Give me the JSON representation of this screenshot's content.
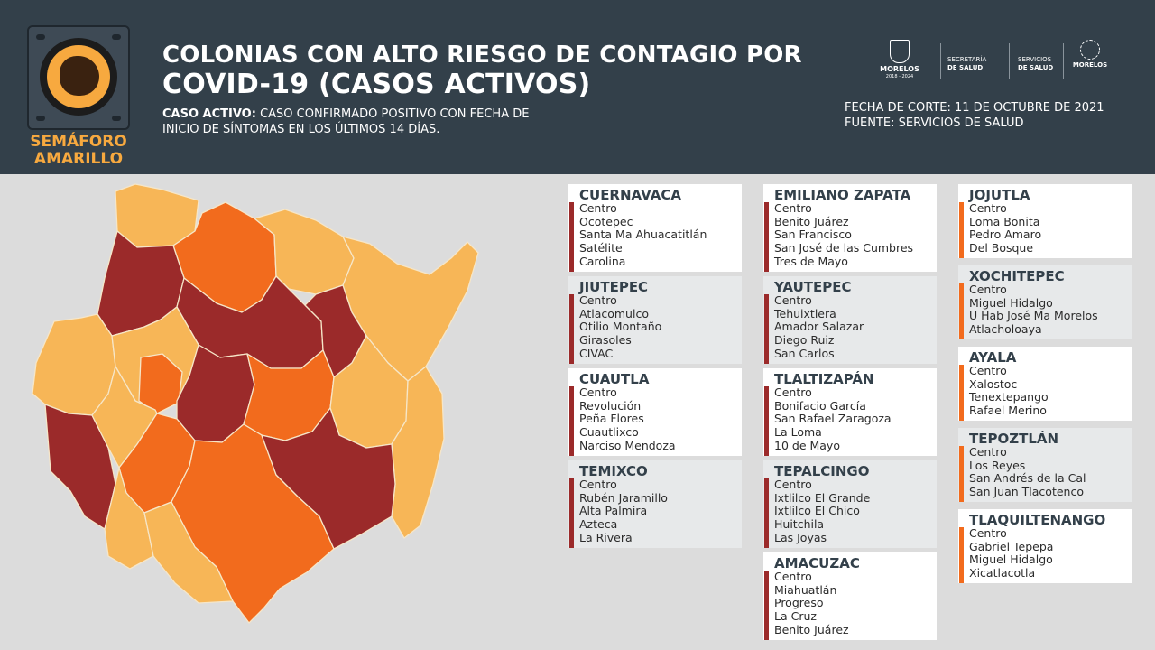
{
  "badge": {
    "line1": "SEMÁFORO",
    "line2": "AMARILLO"
  },
  "header": {
    "title_line1": "COLONIAS CON ALTO RIESGO DE CONTAGIO POR",
    "title_line2": "COVID-19 (CASOS ACTIVOS)",
    "definition_label": "CASO ACTIVO:",
    "definition_text1": " CASO CONFIRMADO POSITIVO CON FECHA DE",
    "definition_text2": "INICIO DE SÍNTOMAS EN LOS ÚLTIMOS 14 DÍAS.",
    "fecha": "FECHA DE CORTE: 11 DE OCTUBRE DE 2021",
    "fuente": "FUENTE: SERVICIOS DE SALUD"
  },
  "logos": {
    "morelos": "MORELOS",
    "morelos_years": "2018 - 2024",
    "secretaria_line1": "SECRETARÍA",
    "secretaria_line2": "DE SALUD",
    "servicios_line1": "SERVICIOS",
    "servicios_line2": "DE SALUD",
    "morelos2": "MORELOS"
  },
  "colors": {
    "header_bg": "#33404a",
    "high_risk": "#9b2a2a",
    "medium_risk": "#f26b1d",
    "low_risk": "#f7b657",
    "badge_accent": "#f7a93f"
  },
  "municipalities": [
    {
      "name": "CUERNAVACA",
      "risk": "high",
      "colonias": [
        "Centro",
        "Ocotepec",
        "Santa Ma Ahuacatitlán",
        "Satélite",
        "Carolina"
      ]
    },
    {
      "name": "JIUTEPEC",
      "risk": "high",
      "colonias": [
        "Centro",
        "Atlacomulco",
        "Otilio Montaño",
        "Girasoles",
        "CIVAC"
      ]
    },
    {
      "name": "CUAUTLA",
      "risk": "high",
      "colonias": [
        "Centro",
        "Revolución",
        "Peña Flores",
        "Cuautlixco",
        "Narciso Mendoza"
      ]
    },
    {
      "name": "TEMIXCO",
      "risk": "high",
      "colonias": [
        "Centro",
        "Rubén Jaramillo",
        "Alta Palmira",
        "Azteca",
        "La Rivera"
      ]
    },
    {
      "name": "EMILIANO ZAPATA",
      "risk": "high",
      "colonias": [
        "Centro",
        "Benito Juárez",
        "San Francisco",
        "San José de las Cumbres",
        "Tres de Mayo"
      ]
    },
    {
      "name": "YAUTEPEC",
      "risk": "high",
      "colonias": [
        "Centro",
        "Tehuixtlera",
        "Amador Salazar",
        "Diego Ruiz",
        "San Carlos"
      ]
    },
    {
      "name": "TLALTIZAPÁN",
      "risk": "high",
      "colonias": [
        "Centro",
        "Bonifacio García",
        "San Rafael Zaragoza",
        "La Loma",
        "10 de Mayo"
      ]
    },
    {
      "name": "TEPALCINGO",
      "risk": "high",
      "colonias": [
        "Centro",
        "Ixtlilco El Grande",
        "Ixtlilco El Chico",
        "Huitchila",
        "Las Joyas"
      ]
    },
    {
      "name": "AMACUZAC",
      "risk": "high",
      "colonias": [
        "Centro",
        "Miahuatlán",
        "Progreso",
        "La Cruz",
        "Benito Juárez"
      ]
    },
    {
      "name": "JOJUTLA",
      "risk": "medium",
      "colonias": [
        "Centro",
        "Loma Bonita",
        "Pedro Amaro",
        "Del Bosque"
      ]
    },
    {
      "name": "XOCHITEPEC",
      "risk": "medium",
      "colonias": [
        "Centro",
        "Miguel Hidalgo",
        "U Hab José Ma Morelos",
        "Atlacholoaya"
      ]
    },
    {
      "name": "AYALA",
      "risk": "medium",
      "colonias": [
        "Centro",
        "Xalostoc",
        "Tenextepango",
        "Rafael Merino"
      ]
    },
    {
      "name": "TEPOZTLÁN",
      "risk": "medium",
      "colonias": [
        "Centro",
        "Los Reyes",
        "San Andrés de la Cal",
        "San Juan Tlacotenco"
      ]
    },
    {
      "name": "TLAQUILTENANGO",
      "risk": "medium",
      "colonias": [
        "Centro",
        "Gabriel Tepepa",
        "Miguel Hidalgo",
        "Xicatlacotla"
      ]
    }
  ]
}
